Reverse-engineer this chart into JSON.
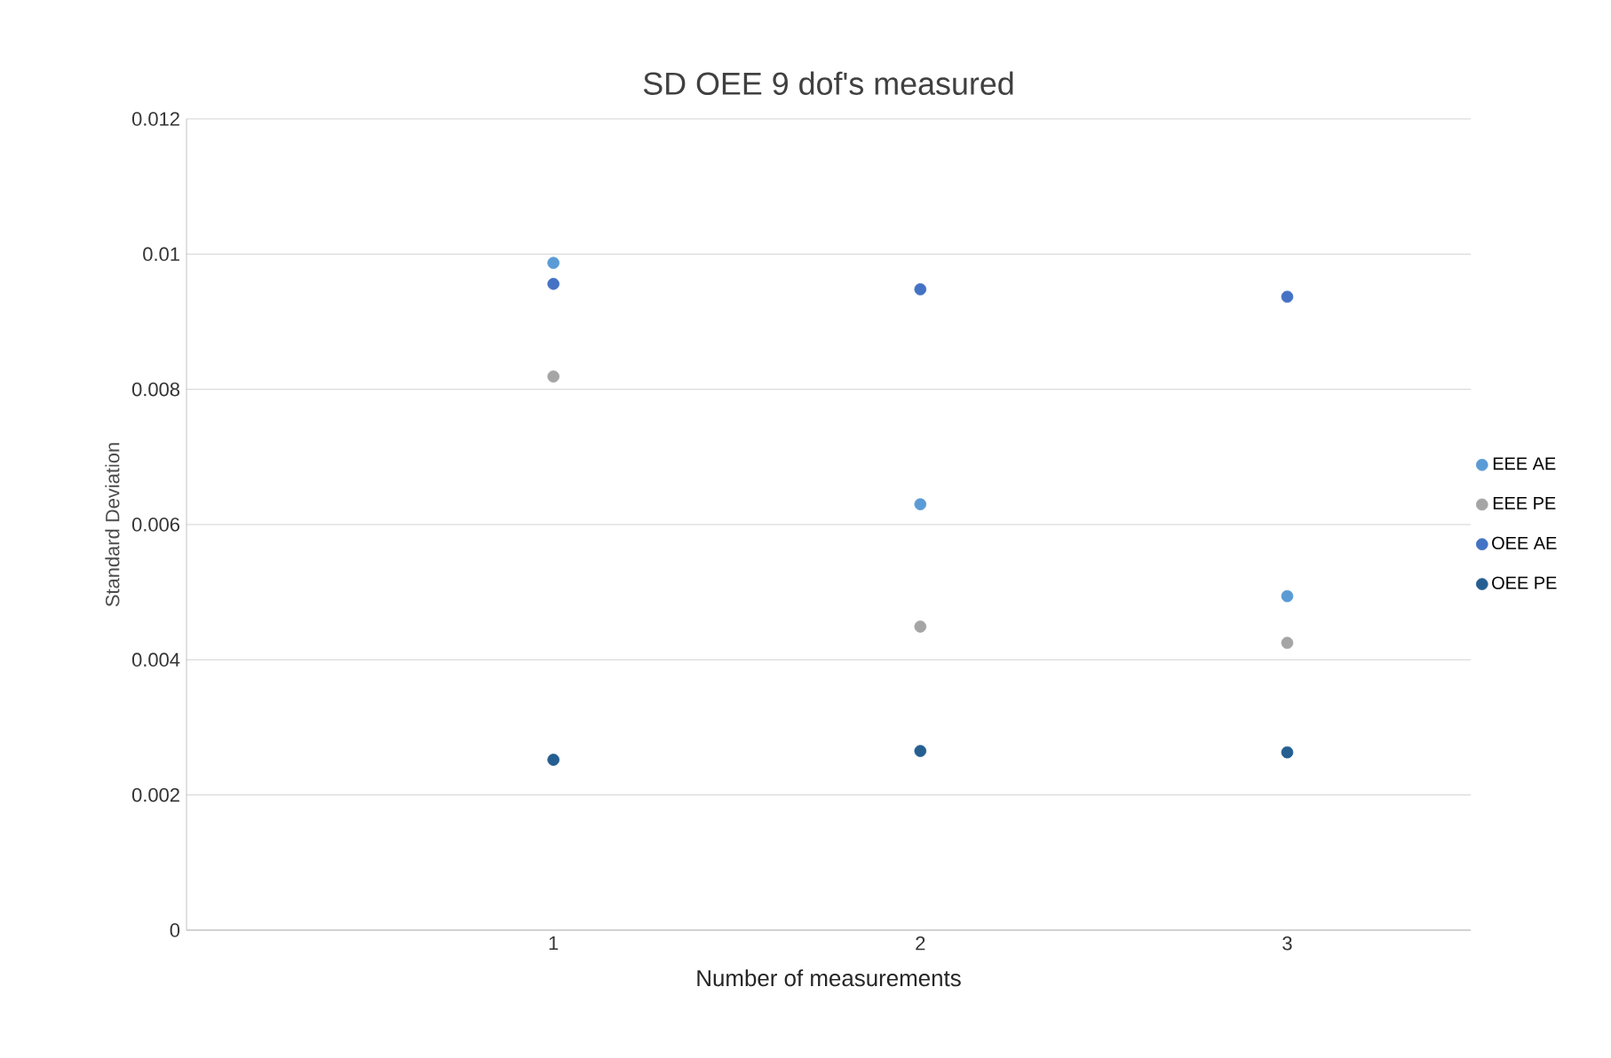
{
  "chart_data": {
    "type": "scatter",
    "title": "SD OEE 9 dof's measured",
    "xlabel": "Number of measurements",
    "ylabel": "Standard Deviation",
    "x": [
      1,
      2,
      3
    ],
    "series": [
      {
        "name": "EEE AE",
        "color": "#5b9bd5",
        "values": [
          0.00987,
          0.0063,
          0.00494
        ]
      },
      {
        "name": "EEE PE",
        "color": "#a5a5a5",
        "values": [
          0.00819,
          0.00449,
          0.00425
        ]
      },
      {
        "name": "OEE AE",
        "color": "#4472c4",
        "values": [
          0.00956,
          0.00948,
          0.00937
        ]
      },
      {
        "name": "OEE PE",
        "color": "#255e91",
        "values": [
          0.00252,
          0.00265,
          0.00263
        ]
      }
    ],
    "xlim": [
      0,
      3.5
    ],
    "xticks": [
      1,
      2,
      3
    ],
    "ylim": [
      0,
      0.012
    ],
    "yticks": [
      0,
      0.002,
      0.004,
      0.006,
      0.008,
      0.01,
      0.012
    ],
    "grid": "y",
    "legend": "right",
    "marker": "circle"
  }
}
